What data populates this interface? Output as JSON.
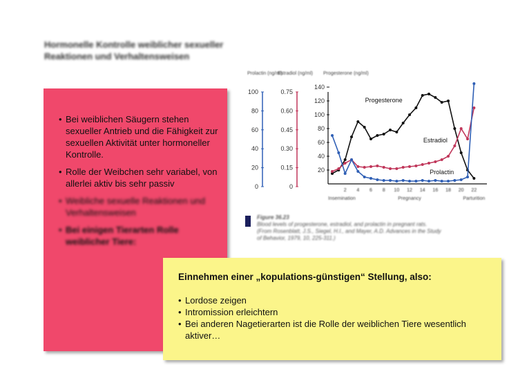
{
  "slide": {
    "title_line1": "Hormonelle Kontrolle weiblicher sexueller",
    "title_line2": "Reaktionen und Verhaltensweisen"
  },
  "pink_box": {
    "bullets": [
      "Bei weiblichen Säugern stehen sexueller Antrieb und die Fähigkeit zur sexuellen Aktivität unter hormoneller Kontrolle.",
      "Rolle der Weibchen sehr variabel, von allerlei aktiv bis sehr passiv",
      "Weibliche sexuelle Reaktionen und Verhaltensweisen",
      "Bei einigen Tierarten Rolle weiblicher Tiere:"
    ]
  },
  "yellow_box": {
    "heading": "Einnehmen einer „kopulations-günstigen“ Stellung, also:",
    "bullets": [
      "Lordose zeigen",
      "Intromission erleichtern",
      "Bei anderen Nagetierarten ist die Rolle der weiblichen Tiere wesentlich aktiver…"
    ]
  },
  "figure": {
    "caption_title": "Figure 36.23",
    "caption_text": "Blood levels of progesterone, estradiol, and prolactin in pregnant rats.",
    "caption_source": "(From Rosenblatt, J.S., Siegel, H.I., and Mayer, A.D. Advances in the Study of Behavior, 1979, 10, 225-311.)"
  },
  "chart_data": {
    "type": "line",
    "axes_headers": {
      "prolactin": "Prolactin (ng/ml)",
      "estradiol": "Estradiol (ng/ml)",
      "progesterone": "Progesterone (ng/ml)"
    },
    "prolactin_ticks": [
      "100",
      "80",
      "60",
      "40",
      "20",
      "0"
    ],
    "estradiol_ticks": [
      "0.75",
      "0.60",
      "0.45",
      "0.30",
      "0.15",
      "0"
    ],
    "progesterone_ticks": [
      "140",
      "120",
      "100",
      "80",
      "60",
      "40",
      "20"
    ],
    "x_ticks": [
      "2",
      "4",
      "6",
      "8",
      "10",
      "12",
      "14",
      "16",
      "18",
      "20",
      "22"
    ],
    "x_groups": [
      "Insemination",
      "Pregnancy",
      "Parturition"
    ],
    "x_range": [
      0,
      24
    ],
    "y_range": [
      0,
      150
    ],
    "series": [
      {
        "name": "Progesterone",
        "color": "#111111",
        "x": [
          0,
          1,
          2,
          3,
          4,
          5,
          6,
          7,
          8,
          9,
          10,
          11,
          12,
          13,
          14,
          15,
          16,
          17,
          18,
          19,
          20,
          21,
          22
        ],
        "y": [
          15,
          20,
          35,
          68,
          90,
          82,
          65,
          70,
          72,
          78,
          75,
          88,
          100,
          110,
          128,
          130,
          125,
          118,
          120,
          80,
          45,
          20,
          8
        ]
      },
      {
        "name": "Estradiol",
        "color": "#c0365a",
        "x": [
          0,
          1,
          2,
          3,
          4,
          5,
          6,
          7,
          8,
          9,
          10,
          11,
          12,
          13,
          14,
          15,
          16,
          17,
          18,
          19,
          20,
          21,
          22
        ],
        "y": [
          18,
          22,
          30,
          35,
          25,
          24,
          25,
          26,
          24,
          22,
          22,
          24,
          25,
          26,
          28,
          30,
          32,
          35,
          40,
          55,
          80,
          65,
          110
        ]
      },
      {
        "name": "Prolactin",
        "color": "#2f5fb5",
        "x": [
          0,
          1,
          2,
          3,
          4,
          5,
          6,
          7,
          8,
          9,
          10,
          11,
          12,
          13,
          14,
          15,
          16,
          17,
          18,
          19,
          20,
          21,
          22
        ],
        "y": [
          70,
          45,
          15,
          35,
          18,
          10,
          8,
          6,
          5,
          5,
          4,
          5,
          4,
          4,
          5,
          4,
          5,
          4,
          4,
          5,
          6,
          10,
          145
        ]
      }
    ]
  }
}
